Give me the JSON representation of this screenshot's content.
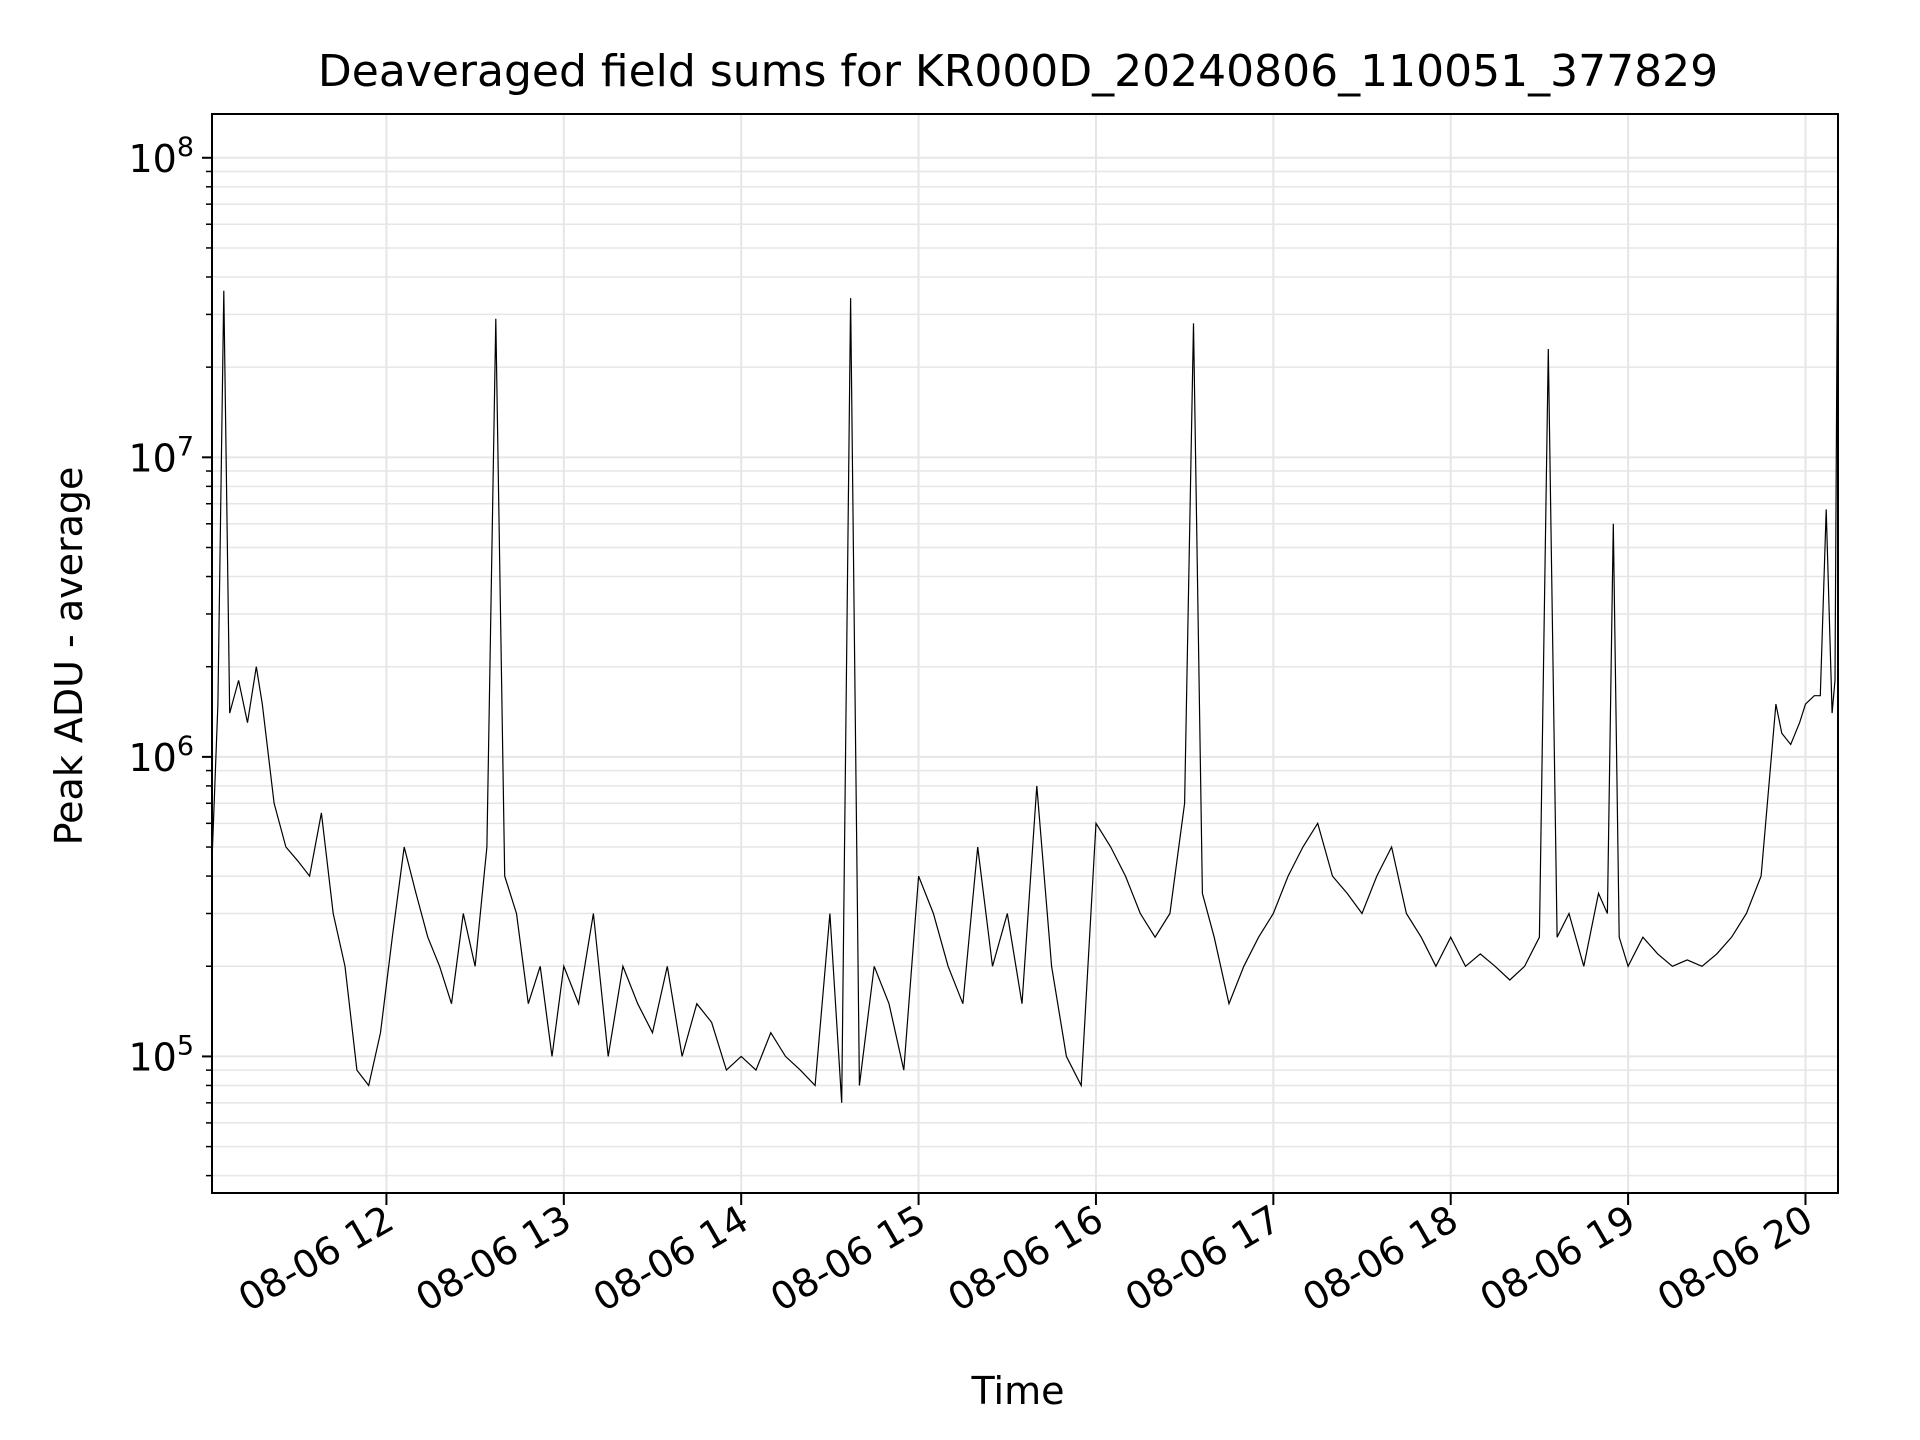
{
  "chart_data": {
    "type": "line",
    "title": "Deaveraged field sums for KR000D_20240806_110051_377829",
    "xlabel": "Time",
    "ylabel": "Peak ADU - average",
    "yscale": "log",
    "ylim": [
      35000,
      140000000
    ],
    "xlim": [
      "2024-08-06 11:01",
      "2024-08-06 20:11"
    ],
    "grid": true,
    "line_color": "#000000",
    "grid_color": "#e6e6e6",
    "x_ticks": [
      {
        "value": "2024-08-06 12:00",
        "label": "08-06 12"
      },
      {
        "value": "2024-08-06 13:00",
        "label": "08-06 13"
      },
      {
        "value": "2024-08-06 14:00",
        "label": "08-06 14"
      },
      {
        "value": "2024-08-06 15:00",
        "label": "08-06 15"
      },
      {
        "value": "2024-08-06 16:00",
        "label": "08-06 16"
      },
      {
        "value": "2024-08-06 17:00",
        "label": "08-06 17"
      },
      {
        "value": "2024-08-06 18:00",
        "label": "08-06 18"
      },
      {
        "value": "2024-08-06 19:00",
        "label": "08-06 19"
      },
      {
        "value": "2024-08-06 20:00",
        "label": "08-06 20"
      }
    ],
    "y_ticks": [
      {
        "value": 100000,
        "base": "10",
        "exp": "5"
      },
      {
        "value": 1000000,
        "base": "10",
        "exp": "6"
      },
      {
        "value": 10000000,
        "base": "10",
        "exp": "7"
      },
      {
        "value": 100000000,
        "base": "10",
        "exp": "8"
      }
    ],
    "series": [
      {
        "x": [
          "2024-08-06 11:01",
          "2024-08-06 11:03",
          "2024-08-06 11:05",
          "2024-08-06 11:07",
          "2024-08-06 11:10",
          "2024-08-06 11:13",
          "2024-08-06 11:16",
          "2024-08-06 11:18",
          "2024-08-06 11:22",
          "2024-08-06 11:26",
          "2024-08-06 11:30",
          "2024-08-06 11:34",
          "2024-08-06 11:38",
          "2024-08-06 11:42",
          "2024-08-06 11:46",
          "2024-08-06 11:50",
          "2024-08-06 11:54",
          "2024-08-06 11:58",
          "2024-08-06 12:02",
          "2024-08-06 12:06",
          "2024-08-06 12:10",
          "2024-08-06 12:14",
          "2024-08-06 12:18",
          "2024-08-06 12:22",
          "2024-08-06 12:26",
          "2024-08-06 12:30",
          "2024-08-06 12:34",
          "2024-08-06 12:37",
          "2024-08-06 12:40",
          "2024-08-06 12:44",
          "2024-08-06 12:48",
          "2024-08-06 12:52",
          "2024-08-06 12:56",
          "2024-08-06 13:00",
          "2024-08-06 13:05",
          "2024-08-06 13:10",
          "2024-08-06 13:15",
          "2024-08-06 13:20",
          "2024-08-06 13:25",
          "2024-08-06 13:30",
          "2024-08-06 13:35",
          "2024-08-06 13:40",
          "2024-08-06 13:45",
          "2024-08-06 13:50",
          "2024-08-06 13:55",
          "2024-08-06 14:00",
          "2024-08-06 14:05",
          "2024-08-06 14:10",
          "2024-08-06 14:15",
          "2024-08-06 14:20",
          "2024-08-06 14:25",
          "2024-08-06 14:30",
          "2024-08-06 14:34",
          "2024-08-06 14:37",
          "2024-08-06 14:40",
          "2024-08-06 14:45",
          "2024-08-06 14:50",
          "2024-08-06 14:55",
          "2024-08-06 15:00",
          "2024-08-06 15:05",
          "2024-08-06 15:10",
          "2024-08-06 15:15",
          "2024-08-06 15:20",
          "2024-08-06 15:25",
          "2024-08-06 15:30",
          "2024-08-06 15:35",
          "2024-08-06 15:40",
          "2024-08-06 15:45",
          "2024-08-06 15:50",
          "2024-08-06 15:55",
          "2024-08-06 16:00",
          "2024-08-06 16:05",
          "2024-08-06 16:10",
          "2024-08-06 16:15",
          "2024-08-06 16:20",
          "2024-08-06 16:25",
          "2024-08-06 16:30",
          "2024-08-06 16:33",
          "2024-08-06 16:36",
          "2024-08-06 16:40",
          "2024-08-06 16:45",
          "2024-08-06 16:50",
          "2024-08-06 16:55",
          "2024-08-06 17:00",
          "2024-08-06 17:05",
          "2024-08-06 17:10",
          "2024-08-06 17:15",
          "2024-08-06 17:20",
          "2024-08-06 17:25",
          "2024-08-06 17:30",
          "2024-08-06 17:35",
          "2024-08-06 17:40",
          "2024-08-06 17:45",
          "2024-08-06 17:50",
          "2024-08-06 17:55",
          "2024-08-06 18:00",
          "2024-08-06 18:05",
          "2024-08-06 18:10",
          "2024-08-06 18:15",
          "2024-08-06 18:20",
          "2024-08-06 18:25",
          "2024-08-06 18:30",
          "2024-08-06 18:33",
          "2024-08-06 18:36",
          "2024-08-06 18:40",
          "2024-08-06 18:45",
          "2024-08-06 18:50",
          "2024-08-06 18:53",
          "2024-08-06 18:55",
          "2024-08-06 18:57",
          "2024-08-06 19:00",
          "2024-08-06 19:05",
          "2024-08-06 19:10",
          "2024-08-06 19:15",
          "2024-08-06 19:20",
          "2024-08-06 19:25",
          "2024-08-06 19:30",
          "2024-08-06 19:35",
          "2024-08-06 19:40",
          "2024-08-06 19:45",
          "2024-08-06 19:50",
          "2024-08-06 19:52",
          "2024-08-06 19:55",
          "2024-08-06 19:58",
          "2024-08-06 20:00",
          "2024-08-06 20:03",
          "2024-08-06 20:05",
          "2024-08-06 20:07",
          "2024-08-06 20:09",
          "2024-08-06 20:10",
          "2024-08-06 20:11"
        ],
        "y": [
          450000,
          1500000,
          36000000,
          1400000,
          1800000,
          1300000,
          2000000,
          1500000,
          700000,
          500000,
          450000,
          400000,
          650000,
          300000,
          200000,
          90000,
          80000,
          120000,
          250000,
          500000,
          350000,
          250000,
          200000,
          150000,
          300000,
          200000,
          500000,
          29000000,
          400000,
          300000,
          150000,
          200000,
          100000,
          200000,
          150000,
          300000,
          100000,
          200000,
          150000,
          120000,
          200000,
          100000,
          150000,
          130000,
          90000,
          100000,
          90000,
          120000,
          100000,
          90000,
          80000,
          300000,
          70000,
          34000000,
          80000,
          200000,
          150000,
          90000,
          400000,
          300000,
          200000,
          150000,
          500000,
          200000,
          300000,
          150000,
          800000,
          200000,
          100000,
          80000,
          600000,
          500000,
          400000,
          300000,
          250000,
          300000,
          700000,
          28000000,
          350000,
          250000,
          150000,
          200000,
          250000,
          300000,
          400000,
          500000,
          600000,
          400000,
          350000,
          300000,
          400000,
          500000,
          300000,
          250000,
          200000,
          250000,
          200000,
          220000,
          200000,
          180000,
          200000,
          250000,
          23000000,
          250000,
          300000,
          200000,
          350000,
          300000,
          6000000,
          250000,
          200000,
          250000,
          220000,
          200000,
          210000,
          200000,
          220000,
          250000,
          300000,
          400000,
          1500000,
          1200000,
          1100000,
          1300000,
          1500000,
          1600000,
          1600000,
          6700000,
          1400000,
          1800000,
          95000000
        ]
      }
    ]
  }
}
